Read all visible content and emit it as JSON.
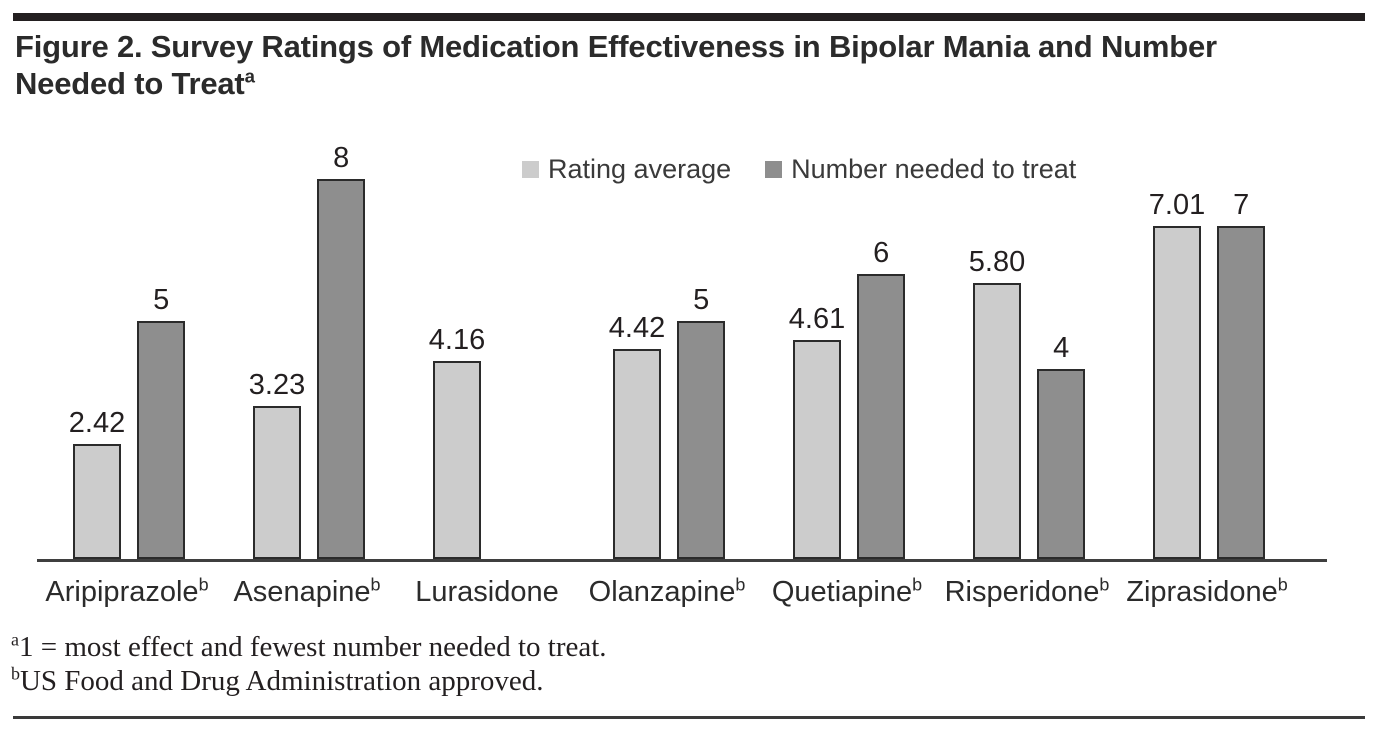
{
  "figure": {
    "title_line1": "Figure 2. Survey Ratings of Medication Effectiveness in Bipolar Mania and Number",
    "title_line2": "Needed to Treat",
    "title_superscript": "a",
    "footnotes": [
      {
        "sup": "a",
        "text": "1 = most effect and fewest number needed to treat."
      },
      {
        "sup": "b",
        "text": "US Food and Drug Administration approved."
      }
    ]
  },
  "chart_data": {
    "type": "bar",
    "title": "Figure 2. Survey Ratings of Medication Effectiveness in Bipolar Mania and Number Needed to Treat",
    "categories": [
      {
        "label": "Aripiprazole",
        "sup": "b"
      },
      {
        "label": "Asenapine",
        "sup": "b"
      },
      {
        "label": "Lurasidone",
        "sup": ""
      },
      {
        "label": "Olanzapine",
        "sup": "b"
      },
      {
        "label": "Quetiapine",
        "sup": "b"
      },
      {
        "label": "Risperidone",
        "sup": "b"
      },
      {
        "label": "Ziprasidone",
        "sup": "b"
      }
    ],
    "series": [
      {
        "name": "Rating average",
        "color": "#cccccc",
        "values": [
          2.42,
          3.23,
          4.16,
          4.42,
          4.61,
          5.8,
          7.01
        ],
        "labels": [
          "2.42",
          "3.23",
          "4.16",
          "4.42",
          "4.61",
          "5.80",
          "7.01"
        ]
      },
      {
        "name": "Number needed to treat",
        "color": "#8e8e8e",
        "values": [
          5,
          8,
          null,
          5,
          6,
          4,
          7
        ],
        "labels": [
          "5",
          "8",
          "",
          "5",
          "6",
          "4",
          "7"
        ]
      }
    ],
    "ylim": [
      0,
      8
    ],
    "value_axis_hidden": true,
    "grid": false,
    "legend_position": "top-center",
    "bar_border_color": "#2b2b2b",
    "axis_color": "#3f3f3f"
  }
}
